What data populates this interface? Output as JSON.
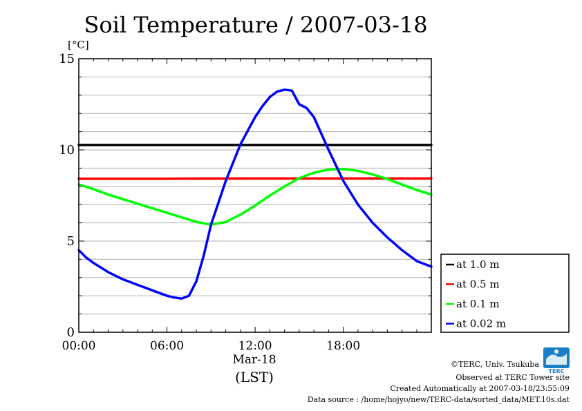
{
  "chart_data": {
    "type": "line",
    "title": "Soil Temperature / 2007-03-18",
    "ylabel": "[°C]",
    "xlabel": "(LST)",
    "date_label": "Mar-18",
    "ylim": [
      0,
      15
    ],
    "xlim_hours": [
      0,
      23.99
    ],
    "yticks": [
      0,
      5,
      10,
      15
    ],
    "ytick_labels": [
      "0",
      "5",
      "10",
      "15"
    ],
    "xticks_hours": [
      0,
      6,
      12,
      18
    ],
    "xtick_labels": [
      "00:00",
      "06:00",
      "12:00",
      "18:00"
    ],
    "grid": true,
    "legend_position": "lower-right-outside",
    "series": [
      {
        "name": "at 1.0 m",
        "color": "#000000",
        "x": [
          0,
          6,
          12,
          18,
          23.99
        ],
        "y": [
          10.27,
          10.27,
          10.27,
          10.27,
          10.27
        ]
      },
      {
        "name": "at 0.5 m",
        "color": "#ff0000",
        "x": [
          0,
          6,
          12,
          18,
          23.99
        ],
        "y": [
          8.42,
          8.42,
          8.43,
          8.43,
          8.43
        ]
      },
      {
        "name": "at 0.1 m",
        "color": "#00ff00",
        "x": [
          0,
          1,
          2,
          3,
          4,
          5,
          6,
          7,
          8,
          9,
          10,
          11,
          12,
          13,
          14,
          15,
          16,
          17,
          18,
          19,
          20,
          21,
          22,
          23,
          23.99
        ],
        "y": [
          8.1,
          7.85,
          7.55,
          7.3,
          7.05,
          6.8,
          6.55,
          6.3,
          6.05,
          5.9,
          6.05,
          6.45,
          6.95,
          7.5,
          8.0,
          8.45,
          8.75,
          8.92,
          8.95,
          8.85,
          8.65,
          8.4,
          8.1,
          7.8,
          7.55
        ]
      },
      {
        "name": "at 0.02 m",
        "color": "#0000ff",
        "x": [
          0,
          0.5,
          1,
          2,
          3,
          4,
          5,
          6,
          6.5,
          7,
          7.5,
          8,
          8.5,
          9,
          10,
          11,
          12,
          12.5,
          13,
          13.5,
          14,
          14.5,
          15,
          15.5,
          16,
          17,
          18,
          19,
          20,
          21,
          22,
          23,
          23.99
        ],
        "y": [
          4.5,
          4.1,
          3.8,
          3.3,
          2.9,
          2.6,
          2.3,
          2.0,
          1.9,
          1.85,
          2.0,
          2.8,
          4.2,
          5.9,
          8.3,
          10.3,
          11.8,
          12.4,
          12.9,
          13.2,
          13.3,
          13.25,
          12.5,
          12.3,
          11.8,
          10.0,
          8.3,
          7.0,
          6.0,
          5.2,
          4.5,
          3.9,
          3.6
        ]
      }
    ]
  },
  "footer": {
    "copyright": "©TERC, Univ. Tsukuba",
    "observed": "Observed at TERC Tower site",
    "created": "Created Automatically at 2007-03-18/23:55:09",
    "source": "Data source : /home/hojyo/new/TERC-data/sorted_data/MET.10s.dat",
    "logo_text": "TERC"
  }
}
